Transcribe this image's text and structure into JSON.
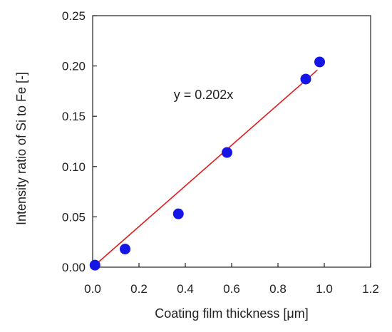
{
  "chart_data": {
    "type": "scatter",
    "xlabel": "Coating film thickness [μm]",
    "ylabel": "Intensity ratio of Si to Fe [-]",
    "xlim": [
      0,
      1.2
    ],
    "ylim": [
      0,
      0.25
    ],
    "x_ticks": [
      "0.0",
      "0.2",
      "0.4",
      "0.6",
      "0.8",
      "1.0",
      "1.2"
    ],
    "y_ticks": [
      "0.00",
      "0.05",
      "0.10",
      "0.15",
      "0.20",
      "0.25"
    ],
    "grid": false,
    "series": [
      {
        "marker_color": "#1515e6",
        "points": [
          {
            "x": 0.01,
            "y": 0.002
          },
          {
            "x": 0.14,
            "y": 0.018
          },
          {
            "x": 0.37,
            "y": 0.053
          },
          {
            "x": 0.58,
            "y": 0.114
          },
          {
            "x": 0.92,
            "y": 0.187
          },
          {
            "x": 0.98,
            "y": 0.204
          }
        ]
      }
    ],
    "fit_line": {
      "slope": 0.202,
      "x_range": [
        0,
        0.97
      ],
      "color": "#e01b1b"
    },
    "annotation": "y = 0.202x"
  }
}
